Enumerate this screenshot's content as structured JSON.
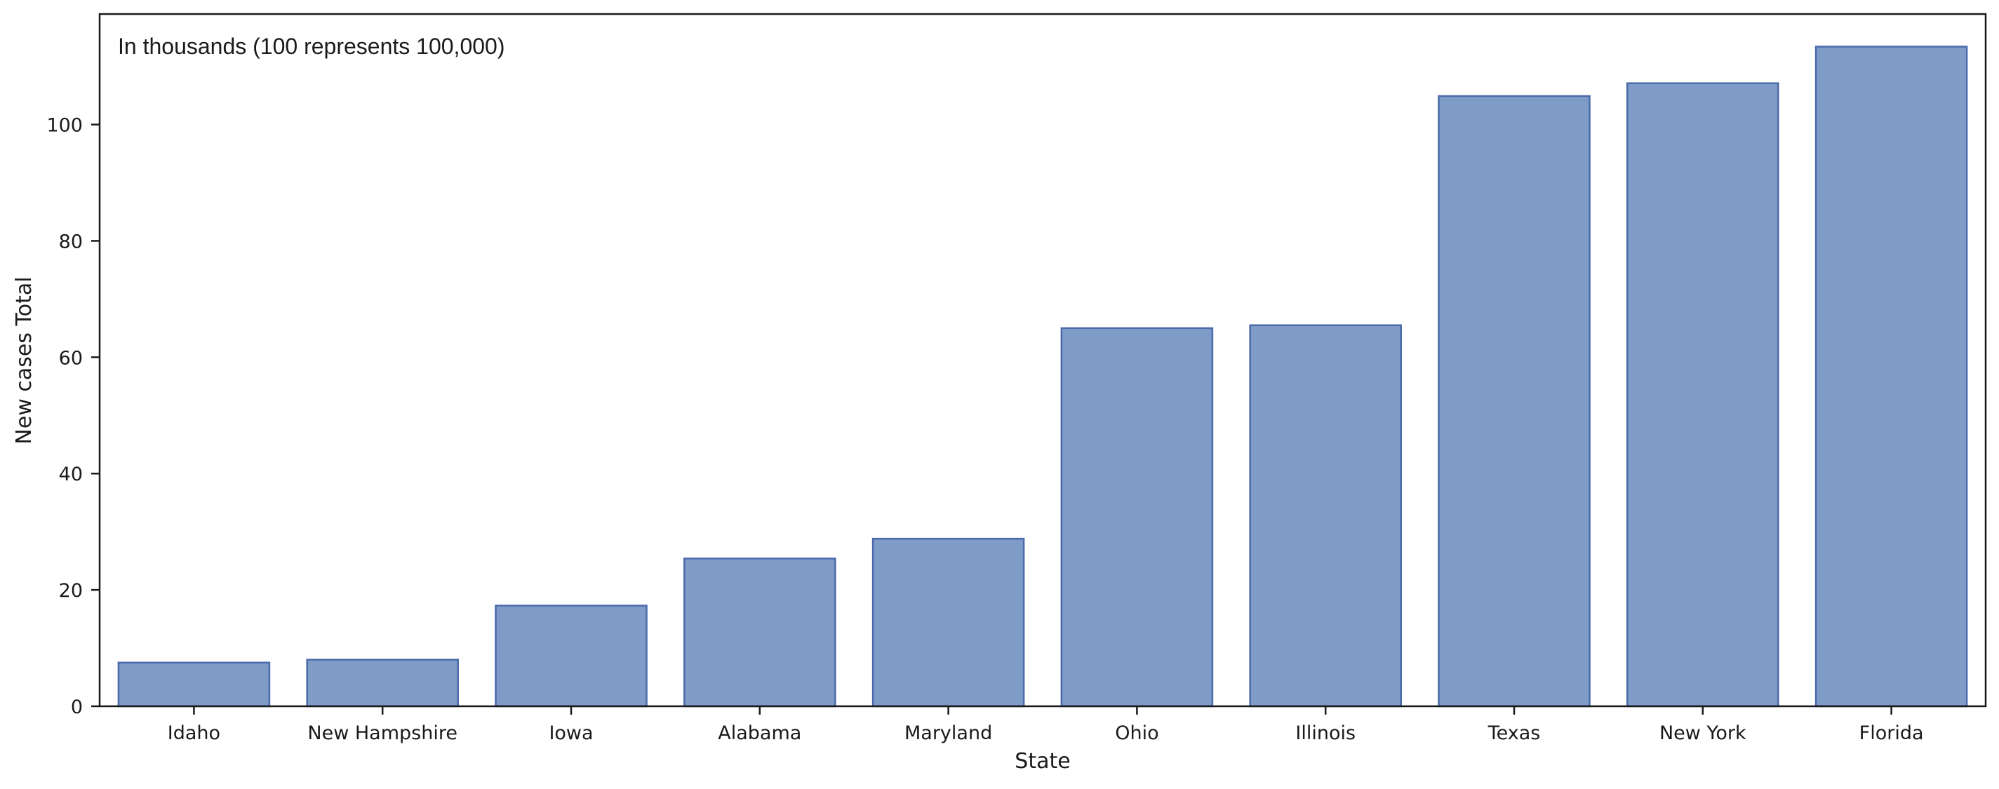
{
  "chart_data": {
    "type": "bar",
    "annotation": "In thousands (100 represents 100,000)",
    "xlabel": "State",
    "ylabel": "New cases Total",
    "categories": [
      "Idaho",
      "New Hampshire",
      "Iowa",
      "Alabama",
      "Maryland",
      "Ohio",
      "Illinois",
      "Texas",
      "New York",
      "Florida"
    ],
    "values": [
      7.5,
      8.0,
      17.3,
      25.4,
      28.8,
      65.0,
      65.5,
      104.9,
      107.1,
      113.4
    ],
    "ylim": [
      0,
      119
    ],
    "yticks": [
      0,
      20,
      40,
      60,
      80,
      100
    ],
    "grid": false,
    "bar_fill": "#7f9cc8",
    "bar_edge": "#4a6aab",
    "axis_color": "#1a1a1a"
  }
}
